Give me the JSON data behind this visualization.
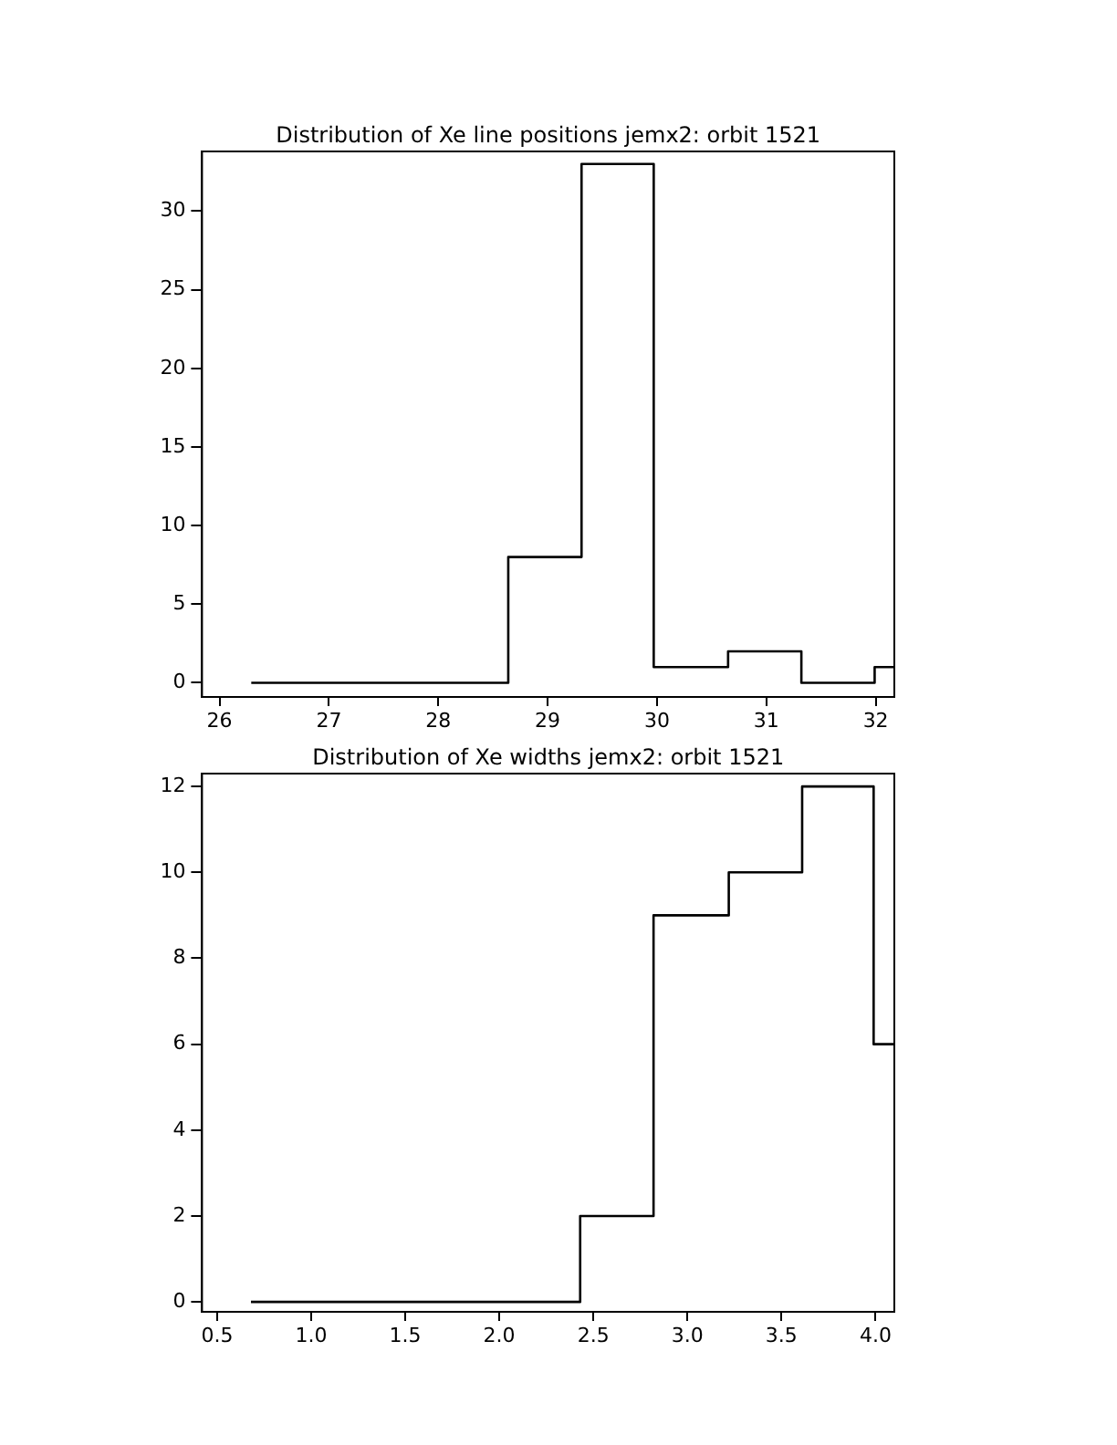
{
  "chart_data": [
    {
      "type": "histogram",
      "title": "Distribution of Xe line positions jemx2: orbit 1521",
      "color": "#000000",
      "bins": [
        26.29,
        28.64,
        29.31,
        29.97,
        30.65,
        31.32,
        31.99,
        32.17
      ],
      "values": [
        0,
        8,
        33,
        1,
        2,
        0,
        1
      ],
      "xlim": [
        25.84,
        32.17
      ],
      "xticks": [
        26,
        27,
        28,
        29,
        30,
        31,
        32
      ],
      "ylim": [
        -0.9,
        33.8
      ],
      "yticks": [
        0,
        5,
        10,
        15,
        20,
        25,
        30
      ],
      "legend": false
    },
    {
      "type": "histogram",
      "title": "Distribution of Xe widths jemx2: orbit 1521",
      "color": "#000000",
      "bins": [
        0.68,
        2.43,
        2.82,
        3.22,
        3.61,
        3.99,
        4.1
      ],
      "values": [
        0,
        2,
        9,
        10,
        12,
        6
      ],
      "xlim": [
        0.42,
        4.1
      ],
      "xticks": [
        {
          "value": 0.5,
          "label": "0.5"
        },
        {
          "value": 1,
          "label": "1.0"
        },
        {
          "value": 1.5,
          "label": "1.5"
        },
        {
          "value": 2,
          "label": "2.0"
        },
        {
          "value": 2.5,
          "label": "2.5"
        },
        {
          "value": 3,
          "label": "3.0"
        },
        {
          "value": 3.5,
          "label": "3.5"
        },
        {
          "value": 4,
          "label": "4.0"
        }
      ],
      "ylim": [
        -0.23,
        12.3
      ],
      "yticks": [
        0,
        2,
        4,
        6,
        8,
        10,
        12
      ],
      "legend": false
    }
  ]
}
